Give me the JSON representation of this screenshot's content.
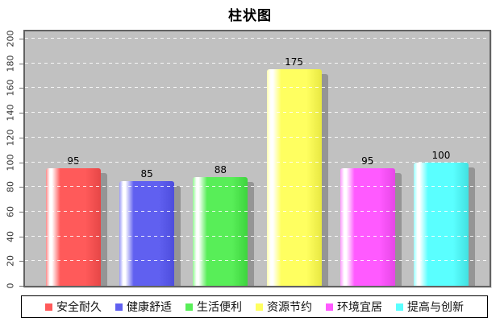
{
  "chart_data": {
    "type": "bar",
    "title": "柱状图",
    "categories": [
      "安全耐久",
      "健康舒适",
      "生活便利",
      "资源节约",
      "环境宜居",
      "提高与创新"
    ],
    "values": [
      95,
      85,
      88,
      175,
      95,
      100
    ],
    "xlabel": "",
    "ylabel": "",
    "ylim": [
      0,
      200
    ],
    "yticks": [
      0,
      20,
      40,
      60,
      80,
      100,
      120,
      140,
      160,
      180,
      200
    ],
    "grid": true,
    "gridline_style": "white-dashed",
    "legend_position": "bottom",
    "plot_background": "#c1c1c1",
    "plot_border": "#626262",
    "value_label_color": "#000000",
    "series_colors": [
      {
        "light": "#ff8a8a",
        "main": "#ff5a5a",
        "dark": "#e64646"
      },
      {
        "light": "#9a9af8",
        "main": "#6060f0",
        "dark": "#4d4ddd"
      },
      {
        "light": "#90f890",
        "main": "#58ee58",
        "dark": "#3ed43e"
      },
      {
        "light": "#ffffb0",
        "main": "#ffff60",
        "dark": "#e8e842"
      },
      {
        "light": "#ff9aff",
        "main": "#ff5aff",
        "dark": "#e646e6"
      },
      {
        "light": "#9affff",
        "main": "#5affff",
        "dark": "#42e0e0"
      }
    ]
  }
}
